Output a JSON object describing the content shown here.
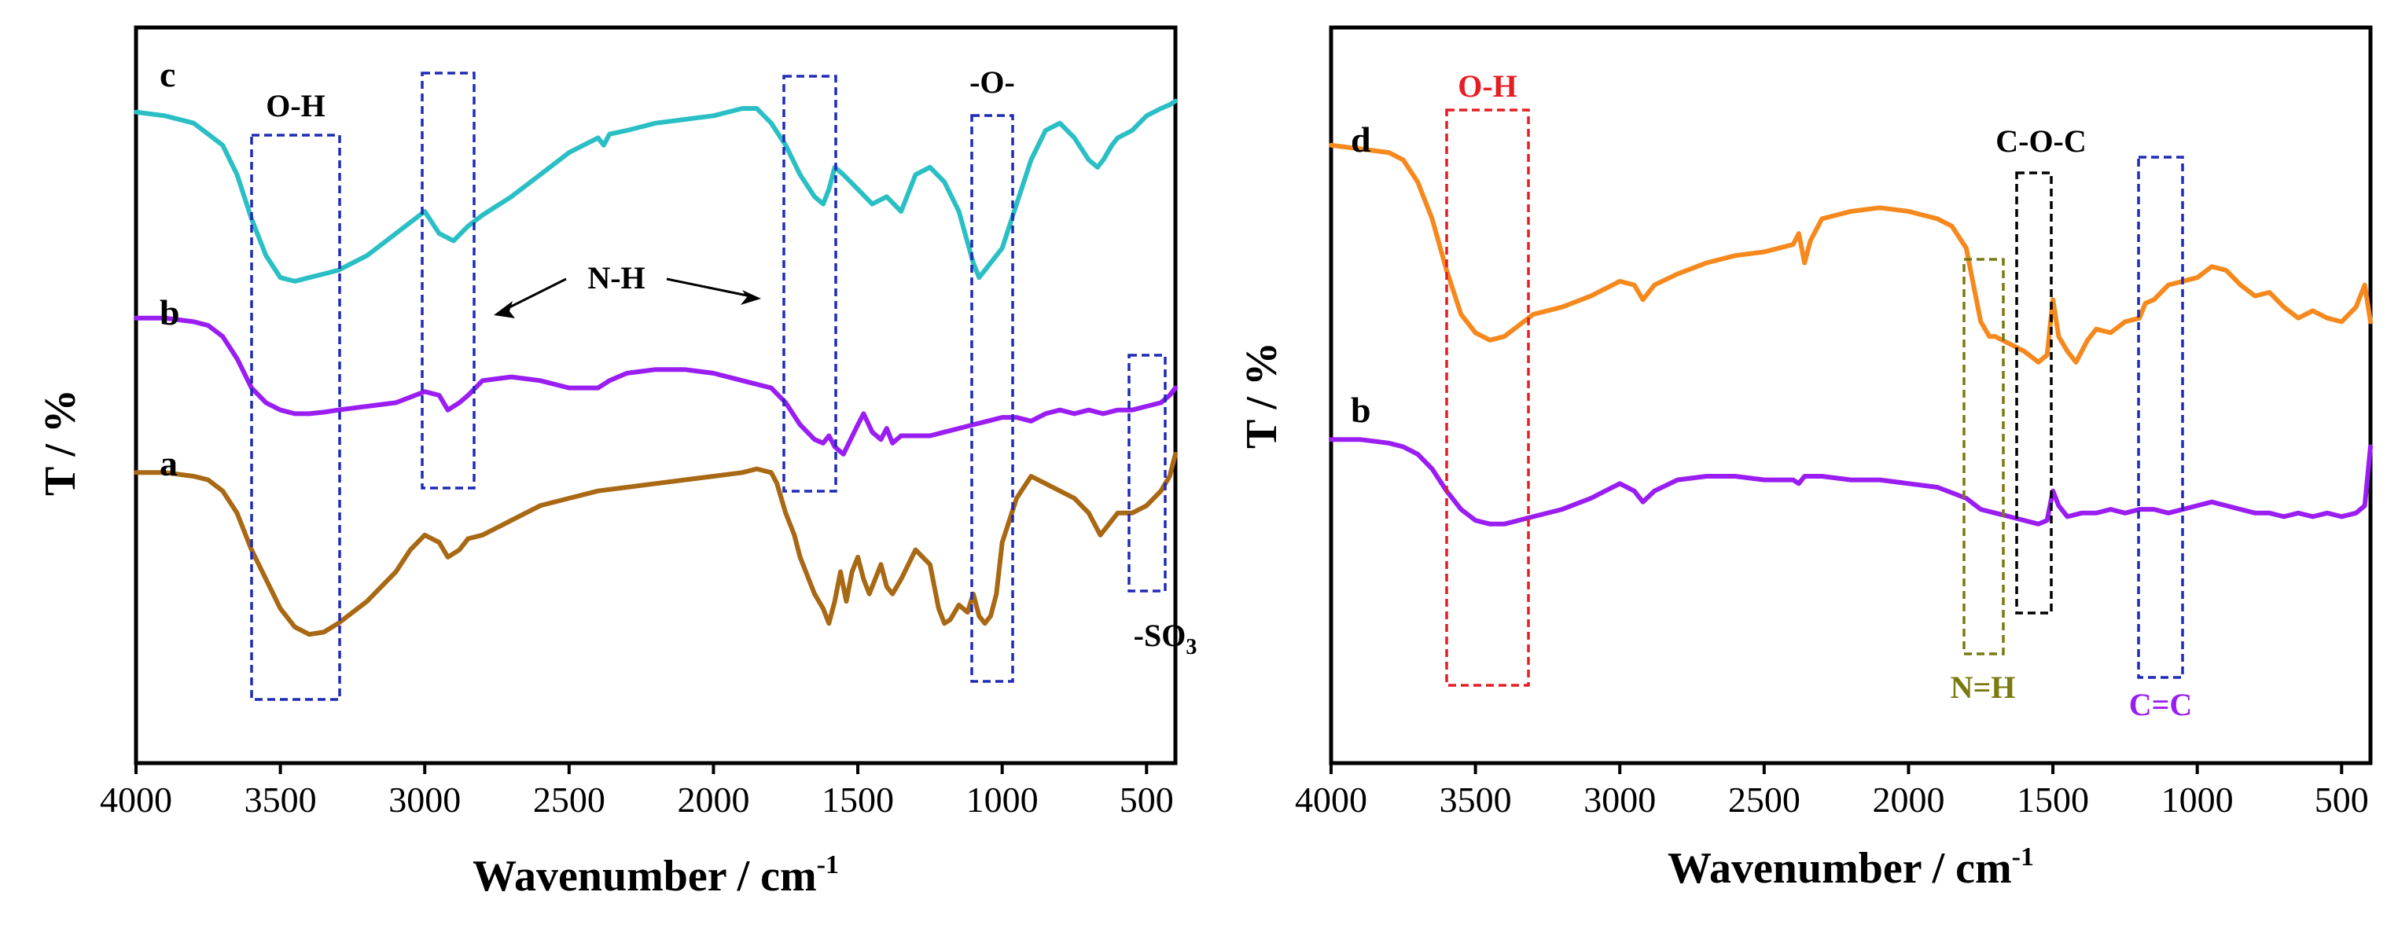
{
  "chart_data": [
    {
      "type": "line",
      "xlabel_main": "Wavenumber / cm",
      "xlabel_sup": "-1",
      "ylabel": "T / %",
      "xlim": [
        4000,
        400
      ],
      "xticks": [
        "4000",
        "3500",
        "3000",
        "2500",
        "2000",
        "1500",
        "1000",
        "500"
      ],
      "xtick_values": [
        4000,
        3500,
        3000,
        2500,
        2000,
        1500,
        1000,
        500
      ],
      "grid": false,
      "legend": "none",
      "series": [
        {
          "name": "c",
          "color": "#2abfc4",
          "x": [
            4000,
            3900,
            3800,
            3700,
            3650,
            3600,
            3550,
            3500,
            3450,
            3400,
            3350,
            3300,
            3200,
            3100,
            3000,
            2950,
            2900,
            2850,
            2800,
            2700,
            2600,
            2500,
            2400,
            2380,
            2360,
            2300,
            2200,
            2100,
            2000,
            1900,
            1850,
            1800,
            1750,
            1700,
            1650,
            1620,
            1600,
            1580,
            1550,
            1500,
            1450,
            1400,
            1350,
            1300,
            1250,
            1200,
            1150,
            1100,
            1080,
            1060,
            1040,
            1000,
            950,
            900,
            850,
            800,
            750,
            700,
            670,
            650,
            620,
            600,
            550,
            500,
            450,
            420,
            400
          ],
          "y": [
            0.885,
            0.88,
            0.87,
            0.84,
            0.8,
            0.74,
            0.69,
            0.66,
            0.655,
            0.66,
            0.665,
            0.67,
            0.69,
            0.72,
            0.75,
            0.72,
            0.71,
            0.73,
            0.745,
            0.77,
            0.8,
            0.83,
            0.85,
            0.84,
            0.855,
            0.86,
            0.87,
            0.875,
            0.88,
            0.89,
            0.89,
            0.87,
            0.84,
            0.8,
            0.77,
            0.76,
            0.78,
            0.81,
            0.8,
            0.78,
            0.76,
            0.77,
            0.75,
            0.8,
            0.81,
            0.79,
            0.75,
            0.68,
            0.66,
            0.67,
            0.68,
            0.7,
            0.76,
            0.82,
            0.86,
            0.87,
            0.85,
            0.82,
            0.81,
            0.82,
            0.84,
            0.85,
            0.86,
            0.88,
            0.89,
            0.895,
            0.9
          ]
        },
        {
          "name": "b",
          "color": "#9a1df2",
          "x": [
            4000,
            3900,
            3800,
            3750,
            3700,
            3650,
            3600,
            3550,
            3500,
            3450,
            3400,
            3350,
            3300,
            3200,
            3100,
            3000,
            2950,
            2920,
            2880,
            2850,
            2800,
            2700,
            2600,
            2500,
            2400,
            2380,
            2360,
            2300,
            2200,
            2100,
            2000,
            1900,
            1800,
            1750,
            1700,
            1650,
            1620,
            1600,
            1580,
            1550,
            1500,
            1480,
            1450,
            1420,
            1400,
            1380,
            1350,
            1300,
            1250,
            1200,
            1150,
            1100,
            1050,
            1000,
            950,
            900,
            850,
            800,
            750,
            700,
            650,
            600,
            550,
            500,
            450,
            420,
            400
          ],
          "y": [
            0.605,
            0.605,
            0.6,
            0.595,
            0.58,
            0.55,
            0.51,
            0.49,
            0.48,
            0.475,
            0.475,
            0.477,
            0.48,
            0.485,
            0.49,
            0.505,
            0.5,
            0.48,
            0.49,
            0.5,
            0.52,
            0.525,
            0.52,
            0.51,
            0.51,
            0.515,
            0.52,
            0.53,
            0.535,
            0.535,
            0.53,
            0.52,
            0.51,
            0.49,
            0.46,
            0.44,
            0.435,
            0.445,
            0.43,
            0.42,
            0.46,
            0.475,
            0.45,
            0.44,
            0.455,
            0.435,
            0.445,
            0.445,
            0.445,
            0.45,
            0.455,
            0.46,
            0.465,
            0.47,
            0.47,
            0.465,
            0.475,
            0.48,
            0.475,
            0.48,
            0.475,
            0.48,
            0.48,
            0.485,
            0.49,
            0.5,
            0.51
          ]
        },
        {
          "name": "a",
          "color": "#a86814",
          "x": [
            4000,
            3900,
            3800,
            3750,
            3700,
            3650,
            3600,
            3550,
            3500,
            3450,
            3400,
            3350,
            3300,
            3200,
            3100,
            3050,
            3000,
            2950,
            2920,
            2880,
            2850,
            2800,
            2700,
            2600,
            2500,
            2400,
            2300,
            2200,
            2100,
            2000,
            1900,
            1850,
            1800,
            1780,
            1750,
            1720,
            1700,
            1680,
            1650,
            1620,
            1600,
            1580,
            1560,
            1540,
            1520,
            1500,
            1480,
            1460,
            1440,
            1420,
            1400,
            1380,
            1350,
            1300,
            1250,
            1220,
            1200,
            1180,
            1150,
            1120,
            1100,
            1080,
            1060,
            1040,
            1020,
            1000,
            950,
            900,
            850,
            800,
            750,
            700,
            660,
            640,
            620,
            600,
            550,
            500,
            450,
            420,
            400
          ],
          "y": [
            0.395,
            0.395,
            0.39,
            0.385,
            0.37,
            0.34,
            0.29,
            0.25,
            0.21,
            0.185,
            0.175,
            0.178,
            0.19,
            0.22,
            0.26,
            0.29,
            0.31,
            0.3,
            0.28,
            0.29,
            0.305,
            0.31,
            0.33,
            0.35,
            0.36,
            0.37,
            0.375,
            0.38,
            0.385,
            0.39,
            0.395,
            0.4,
            0.395,
            0.38,
            0.34,
            0.31,
            0.28,
            0.26,
            0.23,
            0.21,
            0.19,
            0.22,
            0.26,
            0.22,
            0.26,
            0.28,
            0.25,
            0.23,
            0.25,
            0.27,
            0.24,
            0.23,
            0.25,
            0.29,
            0.27,
            0.21,
            0.19,
            0.195,
            0.215,
            0.205,
            0.23,
            0.2,
            0.19,
            0.2,
            0.23,
            0.3,
            0.36,
            0.39,
            0.38,
            0.37,
            0.36,
            0.34,
            0.31,
            0.32,
            0.33,
            0.34,
            0.34,
            0.35,
            0.37,
            0.39,
            0.42
          ]
        }
      ],
      "curve_labels": [
        "c",
        "b",
        "a"
      ],
      "annotations": [
        "O-H",
        "N-H",
        "-O-"
      ],
      "so3_label": {
        "main": "-SO",
        "sub": "3"
      }
    },
    {
      "type": "line",
      "xlabel_main": "Wavenumber / cm",
      "xlabel_sup": "-1",
      "ylabel": "T / %",
      "xlim": [
        4000,
        400
      ],
      "xticks": [
        "4000",
        "3500",
        "3000",
        "2500",
        "2000",
        "1500",
        "1000",
        "500"
      ],
      "xtick_values": [
        4000,
        3500,
        3000,
        2500,
        2000,
        1500,
        1000,
        500
      ],
      "grid": false,
      "legend": "none",
      "series": [
        {
          "name": "d",
          "color": "#f5891e",
          "x": [
            4000,
            3900,
            3800,
            3750,
            3700,
            3650,
            3600,
            3550,
            3500,
            3450,
            3400,
            3350,
            3300,
            3200,
            3100,
            3000,
            2950,
            2920,
            2880,
            2800,
            2700,
            2600,
            2500,
            2450,
            2400,
            2380,
            2360,
            2340,
            2300,
            2200,
            2100,
            2000,
            1900,
            1850,
            1800,
            1780,
            1750,
            1720,
            1700,
            1650,
            1600,
            1550,
            1520,
            1500,
            1480,
            1450,
            1420,
            1400,
            1380,
            1350,
            1300,
            1250,
            1200,
            1180,
            1150,
            1100,
            1050,
            1000,
            950,
            900,
            850,
            800,
            750,
            700,
            650,
            600,
            550,
            500,
            450,
            420,
            400
          ],
          "y": [
            0.84,
            0.835,
            0.83,
            0.82,
            0.79,
            0.74,
            0.67,
            0.61,
            0.585,
            0.575,
            0.58,
            0.595,
            0.61,
            0.62,
            0.635,
            0.655,
            0.65,
            0.63,
            0.65,
            0.665,
            0.68,
            0.69,
            0.695,
            0.7,
            0.705,
            0.72,
            0.68,
            0.71,
            0.74,
            0.75,
            0.755,
            0.75,
            0.74,
            0.73,
            0.7,
            0.66,
            0.6,
            0.58,
            0.58,
            0.57,
            0.56,
            0.545,
            0.555,
            0.63,
            0.58,
            0.56,
            0.545,
            0.56,
            0.575,
            0.59,
            0.585,
            0.6,
            0.605,
            0.625,
            0.63,
            0.65,
            0.655,
            0.66,
            0.675,
            0.67,
            0.65,
            0.635,
            0.64,
            0.62,
            0.605,
            0.615,
            0.605,
            0.6,
            0.62,
            0.65,
            0.6
          ]
        },
        {
          "name": "b",
          "color": "#9a1df2",
          "x": [
            4000,
            3900,
            3800,
            3750,
            3700,
            3650,
            3600,
            3550,
            3500,
            3450,
            3400,
            3350,
            3300,
            3200,
            3100,
            3000,
            2950,
            2920,
            2880,
            2800,
            2700,
            2600,
            2500,
            2400,
            2380,
            2360,
            2300,
            2200,
            2100,
            2000,
            1900,
            1800,
            1750,
            1700,
            1650,
            1600,
            1550,
            1520,
            1500,
            1480,
            1450,
            1400,
            1350,
            1300,
            1250,
            1200,
            1150,
            1100,
            1050,
            1000,
            950,
            900,
            850,
            800,
            750,
            700,
            650,
            600,
            550,
            500,
            450,
            420,
            400
          ],
          "y": [
            0.44,
            0.44,
            0.435,
            0.43,
            0.42,
            0.4,
            0.37,
            0.345,
            0.33,
            0.325,
            0.325,
            0.33,
            0.335,
            0.345,
            0.36,
            0.38,
            0.37,
            0.355,
            0.37,
            0.385,
            0.39,
            0.39,
            0.385,
            0.385,
            0.38,
            0.39,
            0.39,
            0.385,
            0.385,
            0.38,
            0.375,
            0.36,
            0.345,
            0.34,
            0.335,
            0.33,
            0.325,
            0.33,
            0.37,
            0.35,
            0.335,
            0.34,
            0.34,
            0.345,
            0.34,
            0.345,
            0.345,
            0.34,
            0.345,
            0.35,
            0.355,
            0.35,
            0.345,
            0.34,
            0.34,
            0.335,
            0.34,
            0.335,
            0.34,
            0.335,
            0.34,
            0.35,
            0.43
          ]
        }
      ],
      "curve_labels": [
        "d",
        "b"
      ],
      "annotations": [
        "O-H",
        "C-O-C",
        "N=H",
        "C=C"
      ]
    }
  ]
}
